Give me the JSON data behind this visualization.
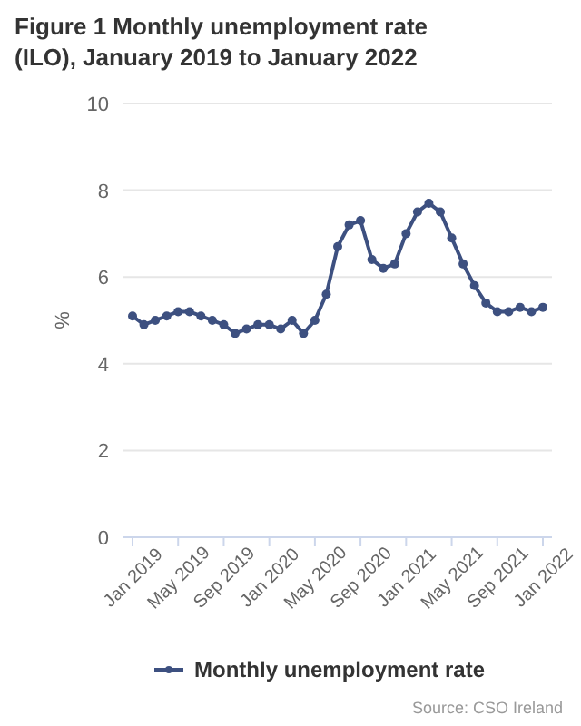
{
  "chart_data": {
    "type": "line",
    "title": "Figure 1 Monthly unemployment rate (ILO), January 2019 to January 2022",
    "ylabel": "%",
    "categories": [
      "Jan 2019",
      null,
      null,
      null,
      "May 2019",
      null,
      null,
      null,
      "Sep 2019",
      null,
      null,
      null,
      "Jan 2020",
      null,
      null,
      null,
      "May 2020",
      null,
      null,
      null,
      "Sep 2020",
      null,
      null,
      null,
      "Jan 2021",
      null,
      null,
      null,
      "May 2021",
      null,
      null,
      null,
      "Sep 2021",
      null,
      null,
      null,
      "Jan 2022"
    ],
    "series": [
      {
        "name": "Monthly unemployment rate",
        "color": "#3d5080",
        "values": [
          5.1,
          4.9,
          5.0,
          5.1,
          5.2,
          5.2,
          5.1,
          5.0,
          4.9,
          4.7,
          4.8,
          4.9,
          4.9,
          4.8,
          5.0,
          4.7,
          5.0,
          5.6,
          6.7,
          7.2,
          7.3,
          6.4,
          6.2,
          6.3,
          7.0,
          7.5,
          7.7,
          7.5,
          6.9,
          6.3,
          5.8,
          5.4,
          5.2,
          5.2,
          5.3,
          5.2,
          5.3
        ]
      }
    ],
    "ylim": [
      0,
      10
    ],
    "yticks": [
      0,
      2,
      4,
      6,
      8,
      10
    ],
    "grid": "y",
    "legend": "bottom",
    "marker": "circle",
    "line_style": "solid",
    "annotations": [
      "Source: CSO Ireland"
    ]
  }
}
